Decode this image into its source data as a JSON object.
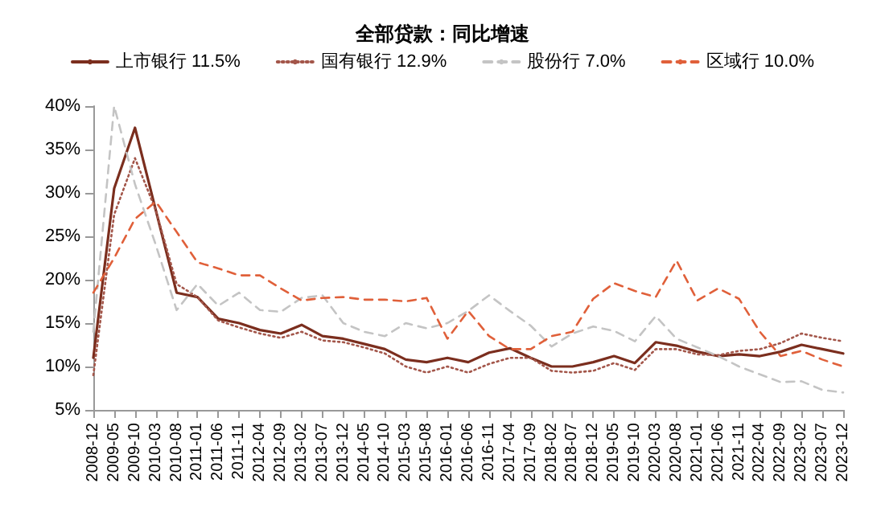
{
  "chart_data": {
    "type": "line",
    "title": "全部贷款：同比增速",
    "categories": [
      "2008-12",
      "2009-05",
      "2009-10",
      "2010-03",
      "2010-08",
      "2011-01",
      "2011-06",
      "2011-11",
      "2012-04",
      "2012-09",
      "2013-02",
      "2013-07",
      "2013-12",
      "2014-05",
      "2014-10",
      "2015-03",
      "2015-08",
      "2016-01",
      "2016-06",
      "2016-11",
      "2017-04",
      "2017-09",
      "2018-02",
      "2018-07",
      "2018-12",
      "2019-05",
      "2019-10",
      "2020-03",
      "2020-08",
      "2021-01",
      "2021-06",
      "2021-11",
      "2022-04",
      "2022-09",
      "2023-02",
      "2023-07",
      "2023-12"
    ],
    "series": [
      {
        "name": "上市银行 11.5%",
        "color": "#7b2e1e",
        "line_style": "solid",
        "values": [
          11,
          30.5,
          37.5,
          28,
          18.5,
          18,
          15.5,
          15,
          14.2,
          13.8,
          14.8,
          13.5,
          13.2,
          12.6,
          12,
          10.8,
          10.5,
          11,
          10.5,
          11.6,
          12.1,
          11,
          10,
          10,
          10.5,
          11.2,
          10.4,
          12.8,
          12.4,
          11.7,
          11.2,
          11.4,
          11.2,
          11.7,
          12.5,
          12,
          11.5
        ]
      },
      {
        "name": "国有银行 12.9%",
        "color": "#a3564a",
        "line_style": "dotted",
        "values": [
          9,
          27.5,
          34,
          28,
          19.5,
          18,
          15.3,
          14.5,
          13.8,
          13.3,
          14,
          13,
          12.8,
          12.2,
          11.5,
          10,
          9.3,
          10,
          9.3,
          10.3,
          11,
          11,
          9.5,
          9.3,
          9.5,
          10.4,
          9.6,
          12,
          12,
          11.4,
          11.3,
          11.8,
          12,
          12.7,
          13.8,
          13.3,
          12.9
        ]
      },
      {
        "name": "股份行 7.0%",
        "color": "#c4c4c4",
        "line_style": "dashed",
        "values": [
          14,
          40,
          31,
          24,
          16.5,
          19.5,
          17,
          18.5,
          16.5,
          16.3,
          17.9,
          18.2,
          15,
          14,
          13.5,
          15,
          14.4,
          15,
          16.4,
          18.2,
          16.4,
          14.7,
          12.3,
          13.8,
          14.6,
          14.1,
          12.9,
          15.8,
          13.2,
          12.2,
          11.2,
          10,
          9.1,
          8.2,
          8.3,
          7.3,
          7
        ]
      },
      {
        "name": "区域行 10.0%",
        "color": "#e0603a",
        "line_style": "dashed",
        "values": [
          18.5,
          22.5,
          27,
          29,
          25.5,
          22,
          21.3,
          20.5,
          20.5,
          19,
          17.6,
          17.9,
          18,
          17.7,
          17.7,
          17.5,
          17.9,
          13.2,
          16.4,
          13.5,
          12,
          12,
          13.5,
          14,
          17.8,
          19.6,
          18.7,
          18,
          22.2,
          17.6,
          19,
          17.8,
          14,
          11.2,
          11.8,
          10.8,
          10
        ]
      }
    ],
    "ylim": [
      5,
      40
    ],
    "yticks": [
      {
        "value": 5,
        "label": "5%"
      },
      {
        "value": 10,
        "label": "10%"
      },
      {
        "value": 15,
        "label": "15%"
      },
      {
        "value": 20,
        "label": "20%"
      },
      {
        "value": 25,
        "label": "25%"
      },
      {
        "value": 30,
        "label": "30%"
      },
      {
        "value": 35,
        "label": "35%"
      },
      {
        "value": 40,
        "label": "40%"
      }
    ],
    "grid": false,
    "legend": "top",
    "marker": "none"
  }
}
